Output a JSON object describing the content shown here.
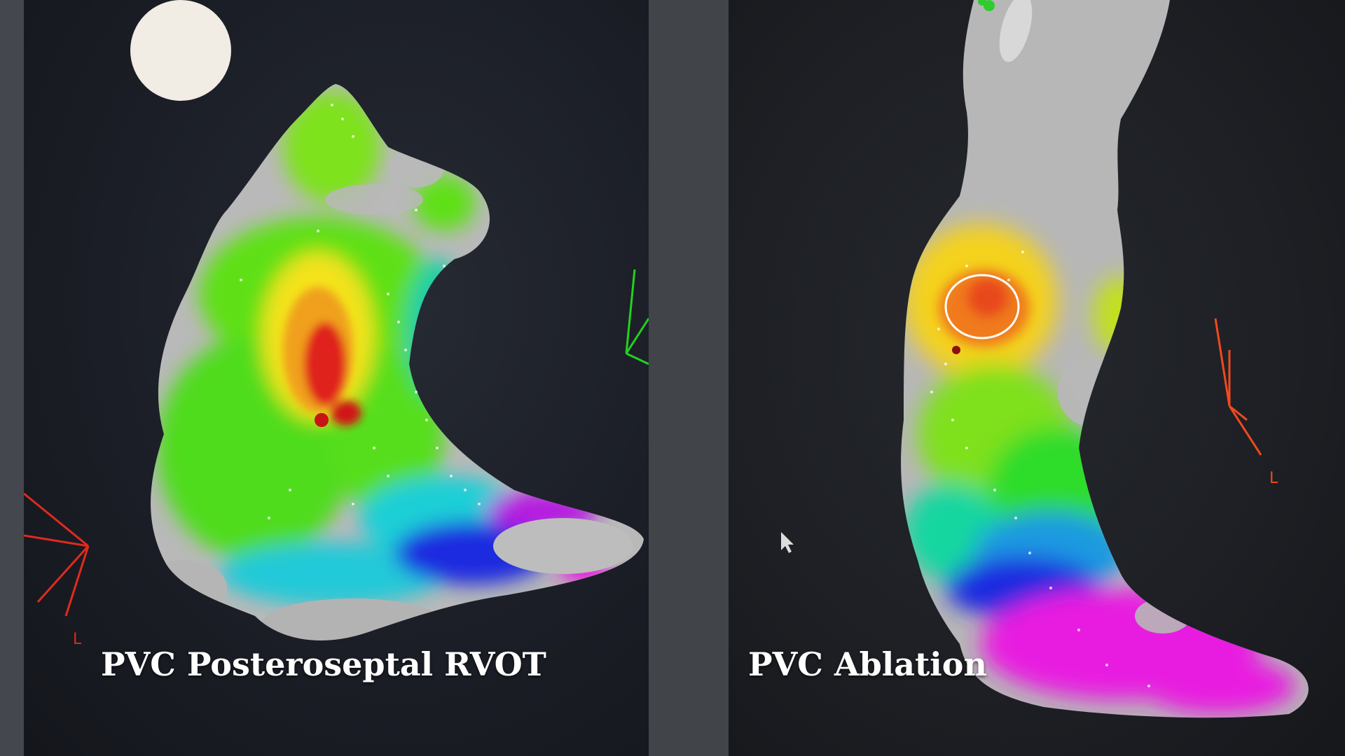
{
  "left_panel": {
    "caption": "PVC Posteroseptal RVOT",
    "orientation_label": "L"
  },
  "right_panel": {
    "caption": "PVC Ablation",
    "orientation_label": "L"
  },
  "colors": {
    "background": "#1b1e26",
    "frame": "#44474d",
    "tissue_gray": "#bfbfbf",
    "early_red": "#e0201c",
    "orange": "#f07a1a",
    "yellow": "#f4e21e",
    "green": "#5fe017",
    "cyan": "#1ecfd6",
    "blue": "#1c2be0",
    "magenta": "#e81ee0"
  }
}
